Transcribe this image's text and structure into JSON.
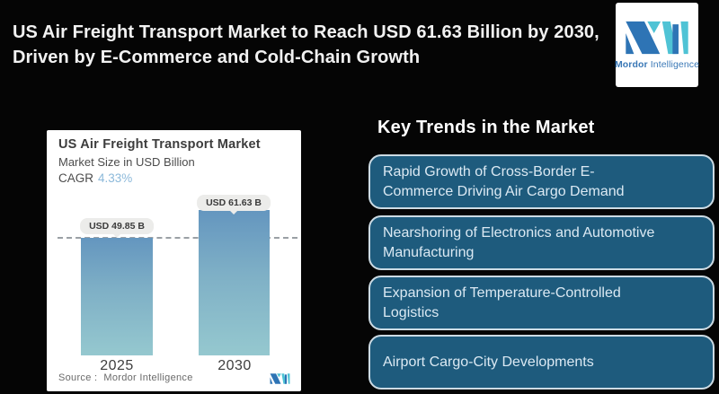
{
  "header": {
    "title_line1": "US Air Freight Transport Market to Reach USD 61.63 Billion by 2030,",
    "title_line2": "Driven by E-Commerce and Cold-Chain Growth"
  },
  "brand": {
    "name_bold": "Mordor",
    "name_light": "Intelligence",
    "logo_dark_color": "#2e74b5",
    "logo_teal_color": "#4fc3d5"
  },
  "chart_card": {
    "title": "US Air Freight Transport Market",
    "subtitle": "Market Size in USD Billion",
    "cagr_label": "CAGR",
    "cagr_value": "4.33%",
    "source_label": "Source :",
    "source_value": "Mordor Intelligence"
  },
  "chart_data": {
    "type": "bar",
    "title": "US Air Freight Transport Market",
    "ylabel": "Market Size in USD Billion",
    "categories": [
      "2025",
      "2030"
    ],
    "values": [
      49.85,
      61.63
    ],
    "value_labels": [
      "USD 49.85 B",
      "USD 61.63 B"
    ],
    "cagr_percent": 4.33,
    "reference_line_value": 49.85,
    "ylim": [
      0,
      70
    ],
    "grid": "off",
    "legend": "none",
    "bar_color_top": "#6496bf",
    "bar_color_bottom": "#95c8cf"
  },
  "key_trends": {
    "heading": "Key Trends in the Market",
    "items": [
      "Rapid Growth of Cross-Border E-\nCommerce Driving Air Cargo Demand",
      "Nearshoring of Electronics and Automotive\nManufacturing",
      "Expansion of Temperature-Controlled\nLogistics",
      "Airport Cargo-City Developments"
    ],
    "box_fill_color": "#1e5b7d",
    "box_border_color": "#ccdbe4",
    "box_text_color": "#dbe9f3"
  },
  "colors": {
    "background": "#050505",
    "title_text": "#f2f2f2",
    "cagr_value_blue": "#8cb9da",
    "reference_line": "#9aa0a5"
  }
}
